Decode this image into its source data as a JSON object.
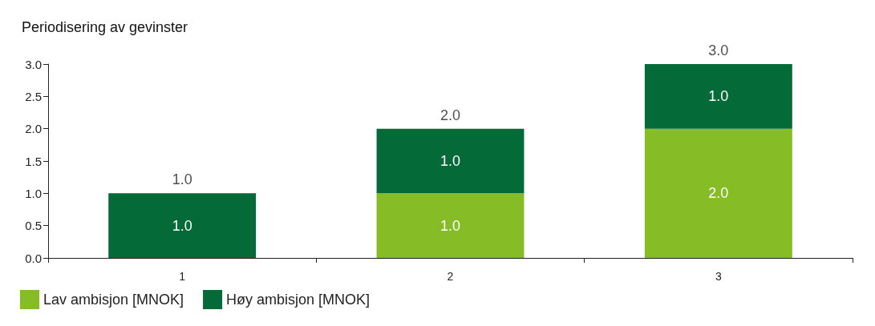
{
  "chart_data": {
    "type": "bar",
    "title": "Periodisering av gevinster",
    "categories": [
      "1",
      "2",
      "3"
    ],
    "stacked": true,
    "series": [
      {
        "name": "Lav ambisjon [MNOK]",
        "color": "#86bc25",
        "values": [
          0,
          1,
          2
        ],
        "value_labels": [
          null,
          "1.0",
          "2.0"
        ]
      },
      {
        "name": "Høy ambisjon [MNOK]",
        "color": "#046a38",
        "values": [
          1,
          1,
          1
        ],
        "value_labels": [
          "1.0",
          "1.0",
          "1.0"
        ]
      }
    ],
    "totals": [
      "1.0",
      "2.0",
      "3.0"
    ],
    "ylim": [
      0,
      3
    ],
    "yticks": [
      {
        "value": 0,
        "label": "0.0"
      },
      {
        "value": 0.5,
        "label": "0.5"
      },
      {
        "value": 1,
        "label": "1.0"
      },
      {
        "value": 1.5,
        "label": "1.5"
      },
      {
        "value": 2,
        "label": "2.0"
      },
      {
        "value": 2.5,
        "label": "2.5"
      },
      {
        "value": 3,
        "label": "3.0"
      }
    ],
    "grid": false,
    "legend": "bottom left"
  }
}
